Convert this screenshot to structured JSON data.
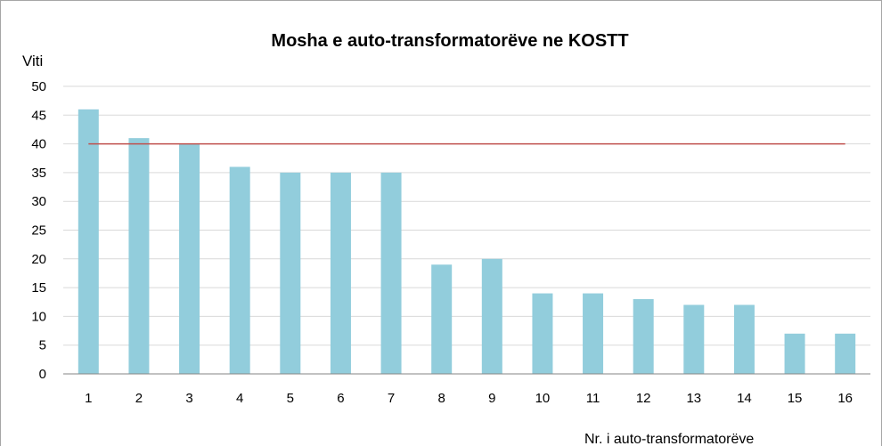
{
  "chart_data": {
    "type": "bar",
    "title": "Mosha e auto-transformatorëve ne KOSTT",
    "y_label": "Viti",
    "x_label": "Nr. i auto-transformatorëve",
    "categories": [
      "1",
      "2",
      "3",
      "4",
      "5",
      "6",
      "7",
      "8",
      "9",
      "10",
      "11",
      "12",
      "13",
      "14",
      "15",
      "16"
    ],
    "values": [
      46,
      41,
      40,
      36,
      35,
      35,
      35,
      19,
      20,
      14,
      14,
      13,
      12,
      12,
      7,
      7
    ],
    "color": "#92cddc",
    "reference_line": {
      "value": 40,
      "color": "#c0504d"
    },
    "ylim": [
      0,
      50
    ],
    "yticks": [
      0,
      5,
      10,
      15,
      20,
      25,
      30,
      35,
      40,
      45,
      50
    ],
    "grid": true
  }
}
